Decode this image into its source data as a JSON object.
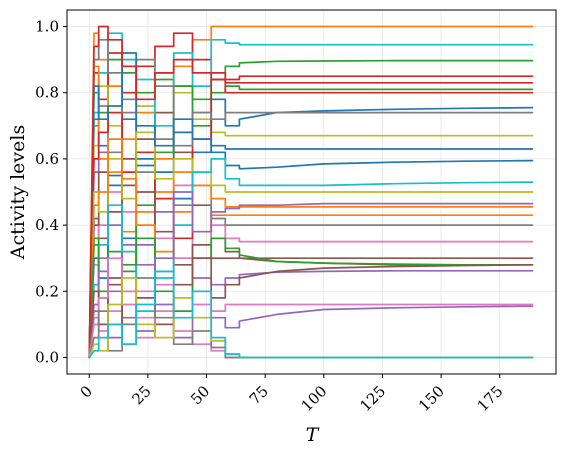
{
  "chart_data": {
    "type": "line",
    "xlabel": "T",
    "ylabel": "Activity levels",
    "xlim": [
      -9.5,
      199
    ],
    "ylim": [
      -0.05,
      1.05
    ],
    "x_ticks": [
      0,
      25,
      50,
      75,
      100,
      125,
      150,
      175
    ],
    "y_ticks": [
      0.0,
      0.2,
      0.4,
      0.6,
      0.8,
      1.0
    ],
    "x_tick_labels": [
      "0",
      "25",
      "50",
      "75",
      "100",
      "125",
      "150",
      "175"
    ],
    "y_tick_labels": [
      "0.0",
      "0.2",
      "0.4",
      "0.6",
      "0.8",
      "1.0"
    ],
    "grid": true,
    "legend": "none",
    "colors": [
      "#1f77b4",
      "#ff7f0e",
      "#2ca02c",
      "#d62728",
      "#9467bd",
      "#8c564b",
      "#e377c2",
      "#7f7f7f",
      "#bcbd22",
      "#17becf"
    ],
    "series": [
      {
        "x": [
          0,
          2,
          4,
          8,
          14,
          20,
          28,
          36,
          44,
          52,
          58,
          64,
          80,
          100,
          130,
          160,
          189
        ],
        "values": [
          0,
          0.72,
          0.64,
          0.55,
          0.36,
          0.58,
          0.26,
          0.48,
          0.62,
          0.78,
          0.7,
          0.72,
          0.74,
          0.745,
          0.75,
          0.753,
          0.755
        ]
      },
      {
        "x": [
          0,
          2,
          4,
          8,
          14,
          20,
          28,
          36,
          44,
          52,
          58,
          64,
          80,
          100,
          130,
          160,
          189
        ],
        "values": [
          0,
          0.98,
          0.9,
          0.82,
          0.66,
          0.74,
          0.6,
          0.88,
          0.96,
          1.0,
          1.0,
          1.0,
          1.0,
          1.0,
          1.0,
          1.0,
          1.0
        ]
      },
      {
        "x": [
          0,
          2,
          4,
          8,
          14,
          20,
          28,
          36,
          44,
          52,
          58,
          64,
          80,
          100,
          130,
          160,
          189
        ],
        "values": [
          0,
          0.8,
          0.74,
          0.9,
          0.86,
          0.8,
          0.84,
          0.82,
          0.78,
          0.84,
          0.88,
          0.89,
          0.895,
          0.896,
          0.897,
          0.897,
          0.897
        ]
      },
      {
        "x": [
          0,
          2,
          4,
          8,
          14,
          20,
          28,
          36,
          44,
          52,
          58,
          64,
          80,
          100,
          130,
          160,
          189
        ],
        "values": [
          0,
          0.86,
          0.78,
          0.92,
          0.8,
          0.88,
          0.94,
          0.98,
          0.9,
          0.86,
          0.84,
          0.85,
          0.85,
          0.85,
          0.85,
          0.85,
          0.85
        ]
      },
      {
        "x": [
          0,
          2,
          4,
          8,
          14,
          20,
          28,
          36,
          44,
          52,
          58,
          64,
          80,
          100,
          130,
          160,
          189
        ],
        "values": [
          0,
          0.56,
          0.62,
          0.4,
          0.2,
          0.34,
          0.16,
          0.06,
          0.2,
          0.12,
          0.09,
          0.11,
          0.13,
          0.145,
          0.15,
          0.153,
          0.155
        ]
      },
      {
        "x": [
          0,
          2,
          4,
          8,
          14,
          20,
          28,
          36,
          44,
          52,
          58,
          64,
          80,
          100,
          130,
          160,
          189
        ],
        "values": [
          0,
          0.42,
          0.36,
          0.22,
          0.52,
          0.66,
          0.74,
          0.62,
          0.46,
          0.36,
          0.32,
          0.3,
          0.29,
          0.285,
          0.28,
          0.28,
          0.28
        ]
      },
      {
        "x": [
          0,
          2,
          4,
          8,
          14,
          20,
          28,
          36,
          44,
          52,
          58,
          64,
          80,
          100,
          130,
          160,
          189
        ],
        "values": [
          0,
          0.28,
          0.4,
          0.5,
          0.44,
          0.2,
          0.36,
          0.52,
          0.3,
          0.4,
          0.36,
          0.35,
          0.35,
          0.35,
          0.35,
          0.35,
          0.35
        ]
      },
      {
        "x": [
          0,
          2,
          4,
          8,
          14,
          20,
          28,
          36,
          44,
          52,
          58,
          64,
          80,
          100,
          130,
          160,
          189
        ],
        "values": [
          0,
          0.7,
          0.76,
          0.62,
          0.78,
          0.56,
          0.66,
          0.46,
          0.52,
          0.42,
          0.4,
          0.4,
          0.4,
          0.4,
          0.4,
          0.4,
          0.4
        ]
      },
      {
        "x": [
          0,
          2,
          4,
          8,
          14,
          20,
          28,
          36,
          44,
          52,
          58,
          64,
          80,
          100,
          130,
          160,
          189
        ],
        "values": [
          0,
          0.64,
          0.82,
          0.7,
          0.9,
          0.76,
          0.86,
          0.8,
          0.72,
          0.68,
          0.67,
          0.67,
          0.67,
          0.67,
          0.67,
          0.67,
          0.67
        ]
      },
      {
        "x": [
          0,
          2,
          4,
          8,
          14,
          20,
          28,
          36,
          44,
          52,
          58,
          64,
          80,
          100,
          130,
          160,
          189
        ],
        "values": [
          0,
          0.74,
          0.86,
          0.98,
          0.9,
          0.84,
          0.7,
          0.92,
          0.82,
          0.96,
          0.95,
          0.945,
          0.945,
          0.945,
          0.945,
          0.945,
          0.945
        ]
      },
      {
        "x": [
          0,
          2,
          4,
          8,
          14,
          20,
          28,
          36,
          44,
          52,
          58,
          64,
          80,
          100,
          130,
          160,
          189
        ],
        "values": [
          0,
          0.3,
          0.24,
          0.52,
          0.72,
          0.6,
          0.56,
          0.68,
          0.74,
          0.62,
          0.58,
          0.57,
          0.575,
          0.585,
          0.59,
          0.593,
          0.595
        ]
      },
      {
        "x": [
          0,
          2,
          4,
          8,
          14,
          20,
          28,
          36,
          44,
          52,
          58,
          64,
          80,
          100,
          130,
          160,
          189
        ],
        "values": [
          0,
          0.88,
          0.6,
          0.56,
          0.38,
          0.44,
          0.5,
          0.56,
          0.52,
          0.48,
          0.455,
          0.455,
          0.455,
          0.455,
          0.455,
          0.455,
          0.455
        ]
      },
      {
        "x": [
          0,
          2,
          4,
          8,
          14,
          20,
          28,
          36,
          44,
          52,
          58,
          64,
          80,
          100,
          130,
          160,
          189
        ],
        "values": [
          0,
          0.36,
          0.2,
          0.32,
          0.26,
          0.46,
          0.62,
          0.82,
          0.7,
          0.8,
          0.82,
          0.81,
          0.81,
          0.81,
          0.81,
          0.81,
          0.81
        ]
      },
      {
        "x": [
          0,
          2,
          4,
          8,
          14,
          20,
          28,
          36,
          44,
          52,
          58,
          64,
          80,
          100,
          130,
          160,
          189
        ],
        "values": [
          0,
          0.6,
          0.68,
          0.74,
          0.56,
          0.62,
          0.48,
          0.36,
          0.66,
          0.84,
          0.8,
          0.8,
          0.8,
          0.8,
          0.8,
          0.8,
          0.8
        ]
      },
      {
        "x": [
          0,
          2,
          4,
          8,
          14,
          20,
          28,
          36,
          44,
          52,
          58,
          64,
          80,
          100,
          130,
          160,
          189
        ],
        "values": [
          0,
          0.16,
          0.3,
          0.2,
          0.34,
          0.28,
          0.44,
          0.3,
          0.24,
          0.22,
          0.24,
          0.25,
          0.258,
          0.26,
          0.262,
          0.262,
          0.262
        ]
      },
      {
        "x": [
          0,
          2,
          4,
          8,
          14,
          20,
          28,
          36,
          44,
          52,
          58,
          64,
          80,
          100,
          130,
          160,
          189
        ],
        "values": [
          0,
          0.4,
          0.56,
          0.44,
          0.6,
          0.5,
          0.38,
          0.28,
          0.34,
          0.3,
          0.3,
          0.3,
          0.3,
          0.3,
          0.3,
          0.3,
          0.3
        ]
      },
      {
        "x": [
          0,
          2,
          4,
          8,
          14,
          20,
          28,
          36,
          44,
          52,
          58,
          64,
          80,
          100,
          130,
          160,
          189
        ],
        "values": [
          0,
          0.12,
          0.08,
          0.14,
          0.2,
          0.12,
          0.22,
          0.3,
          0.16,
          0.14,
          0.16,
          0.16,
          0.16,
          0.16,
          0.16,
          0.16,
          0.16
        ]
      },
      {
        "x": [
          0,
          2,
          4,
          8,
          14,
          20,
          28,
          36,
          44,
          52,
          58,
          64,
          80,
          100,
          130,
          160,
          189
        ],
        "values": [
          0,
          0.9,
          0.96,
          0.86,
          0.74,
          0.9,
          0.82,
          0.64,
          0.74,
          0.72,
          0.74,
          0.74,
          0.74,
          0.74,
          0.74,
          0.74,
          0.74
        ]
      },
      {
        "x": [
          0,
          2,
          4,
          8,
          14,
          20,
          28,
          36,
          44,
          52,
          58,
          64,
          80,
          100,
          130,
          160,
          189
        ],
        "values": [
          0,
          0.5,
          0.44,
          0.6,
          0.48,
          0.68,
          0.54,
          0.6,
          0.56,
          0.52,
          0.5,
          0.5,
          0.5,
          0.5,
          0.5,
          0.5,
          0.5
        ]
      },
      {
        "x": [
          0,
          2,
          4,
          8,
          14,
          20,
          28,
          36,
          44,
          52,
          58,
          64,
          80,
          100,
          130,
          160,
          189
        ],
        "values": [
          0,
          0.22,
          0.34,
          0.46,
          0.32,
          0.14,
          0.24,
          0.4,
          0.56,
          0.6,
          0.54,
          0.52,
          0.52,
          0.52,
          0.525,
          0.528,
          0.53
        ]
      },
      {
        "x": [
          0,
          2,
          4,
          8,
          14,
          20,
          28,
          36,
          44,
          52,
          58,
          64,
          80,
          100,
          130,
          160,
          189
        ],
        "values": [
          0,
          0.82,
          0.72,
          0.76,
          0.92,
          0.7,
          0.64,
          0.72,
          0.66,
          0.64,
          0.63,
          0.63,
          0.63,
          0.63,
          0.63,
          0.63,
          0.63
        ]
      },
      {
        "x": [
          0,
          2,
          4,
          8,
          14,
          20,
          28,
          36,
          44,
          52,
          58,
          64,
          80,
          100,
          130,
          160,
          189
        ],
        "values": [
          0,
          0.46,
          0.5,
          0.66,
          0.54,
          0.4,
          0.32,
          0.44,
          0.38,
          0.43,
          0.43,
          0.43,
          0.43,
          0.43,
          0.43,
          0.43,
          0.43
        ]
      },
      {
        "x": [
          0,
          2,
          4,
          8,
          14,
          20,
          28,
          36,
          44,
          52,
          58,
          64,
          80,
          100,
          130,
          160,
          189
        ],
        "values": [
          0,
          0.34,
          0.18,
          0.1,
          0.28,
          0.36,
          0.2,
          0.14,
          0.3,
          0.36,
          0.33,
          0.31,
          0.29,
          0.285,
          0.282,
          0.28,
          0.28
        ]
      },
      {
        "x": [
          0,
          2,
          4,
          8,
          14,
          20,
          28,
          36,
          44,
          52,
          58,
          64,
          80,
          100,
          130,
          160,
          189
        ],
        "values": [
          0,
          0.94,
          1.0,
          0.96,
          0.88,
          0.78,
          0.86,
          0.9,
          0.86,
          0.84,
          0.83,
          0.83,
          0.83,
          0.83,
          0.83,
          0.83,
          0.83
        ]
      },
      {
        "x": [
          0,
          2,
          4,
          8,
          14,
          20,
          28,
          36,
          44,
          52,
          58,
          64,
          80,
          100,
          130,
          160,
          189
        ],
        "values": [
          0,
          0.14,
          0.26,
          0.06,
          0.12,
          0.08,
          0.3,
          0.5,
          0.38,
          0.44,
          0.45,
          0.46,
          0.46,
          0.465,
          0.465,
          0.465,
          0.465
        ]
      },
      {
        "x": [
          0,
          2,
          4,
          8,
          14,
          20,
          28,
          36,
          44,
          52,
          58,
          64,
          80,
          100,
          130,
          160,
          189
        ],
        "values": [
          0,
          0.2,
          0.1,
          0.24,
          0.04,
          0.18,
          0.1,
          0.22,
          0.3,
          0.18,
          0.22,
          0.24,
          0.26,
          0.27,
          0.275,
          0.278,
          0.28
        ]
      },
      {
        "x": [
          0,
          2,
          4,
          8,
          14,
          20,
          28,
          36,
          44,
          52,
          58,
          64,
          80,
          100,
          130,
          160,
          189
        ],
        "values": [
          0,
          0.1,
          0.18,
          0.3,
          0.16,
          0.06,
          0.14,
          0.08,
          0.04,
          0.02,
          0.0,
          0.0,
          0.0,
          0.0,
          0.0,
          0.0,
          0.0
        ]
      },
      {
        "x": [
          0,
          2,
          4,
          8,
          14,
          20,
          28,
          36,
          44,
          52,
          58,
          64,
          80,
          100,
          130,
          160,
          189
        ],
        "values": [
          0,
          0.06,
          0.14,
          0.02,
          0.1,
          0.24,
          0.12,
          0.04,
          0.08,
          0.03,
          0.0,
          0.0,
          0.0,
          0.0,
          0.0,
          0.0,
          0.0
        ]
      },
      {
        "x": [
          0,
          2,
          4,
          8,
          14,
          20,
          28,
          36,
          44,
          52,
          58,
          64,
          80,
          100,
          130,
          160,
          189
        ],
        "values": [
          0,
          0.04,
          0.02,
          0.16,
          0.24,
          0.1,
          0.06,
          0.18,
          0.12,
          0.05,
          0.01,
          0.0,
          0.0,
          0.0,
          0.0,
          0.0,
          0.0
        ]
      },
      {
        "x": [
          0,
          2,
          4,
          8,
          14,
          20,
          28,
          36,
          44,
          52,
          58,
          64,
          80,
          100,
          130,
          160,
          189
        ],
        "values": [
          0,
          0.02,
          0.06,
          0.1,
          0.04,
          0.16,
          0.26,
          0.12,
          0.2,
          0.06,
          0.01,
          0.0,
          0.0,
          0.0,
          0.0,
          0.0,
          0.0
        ]
      }
    ]
  }
}
